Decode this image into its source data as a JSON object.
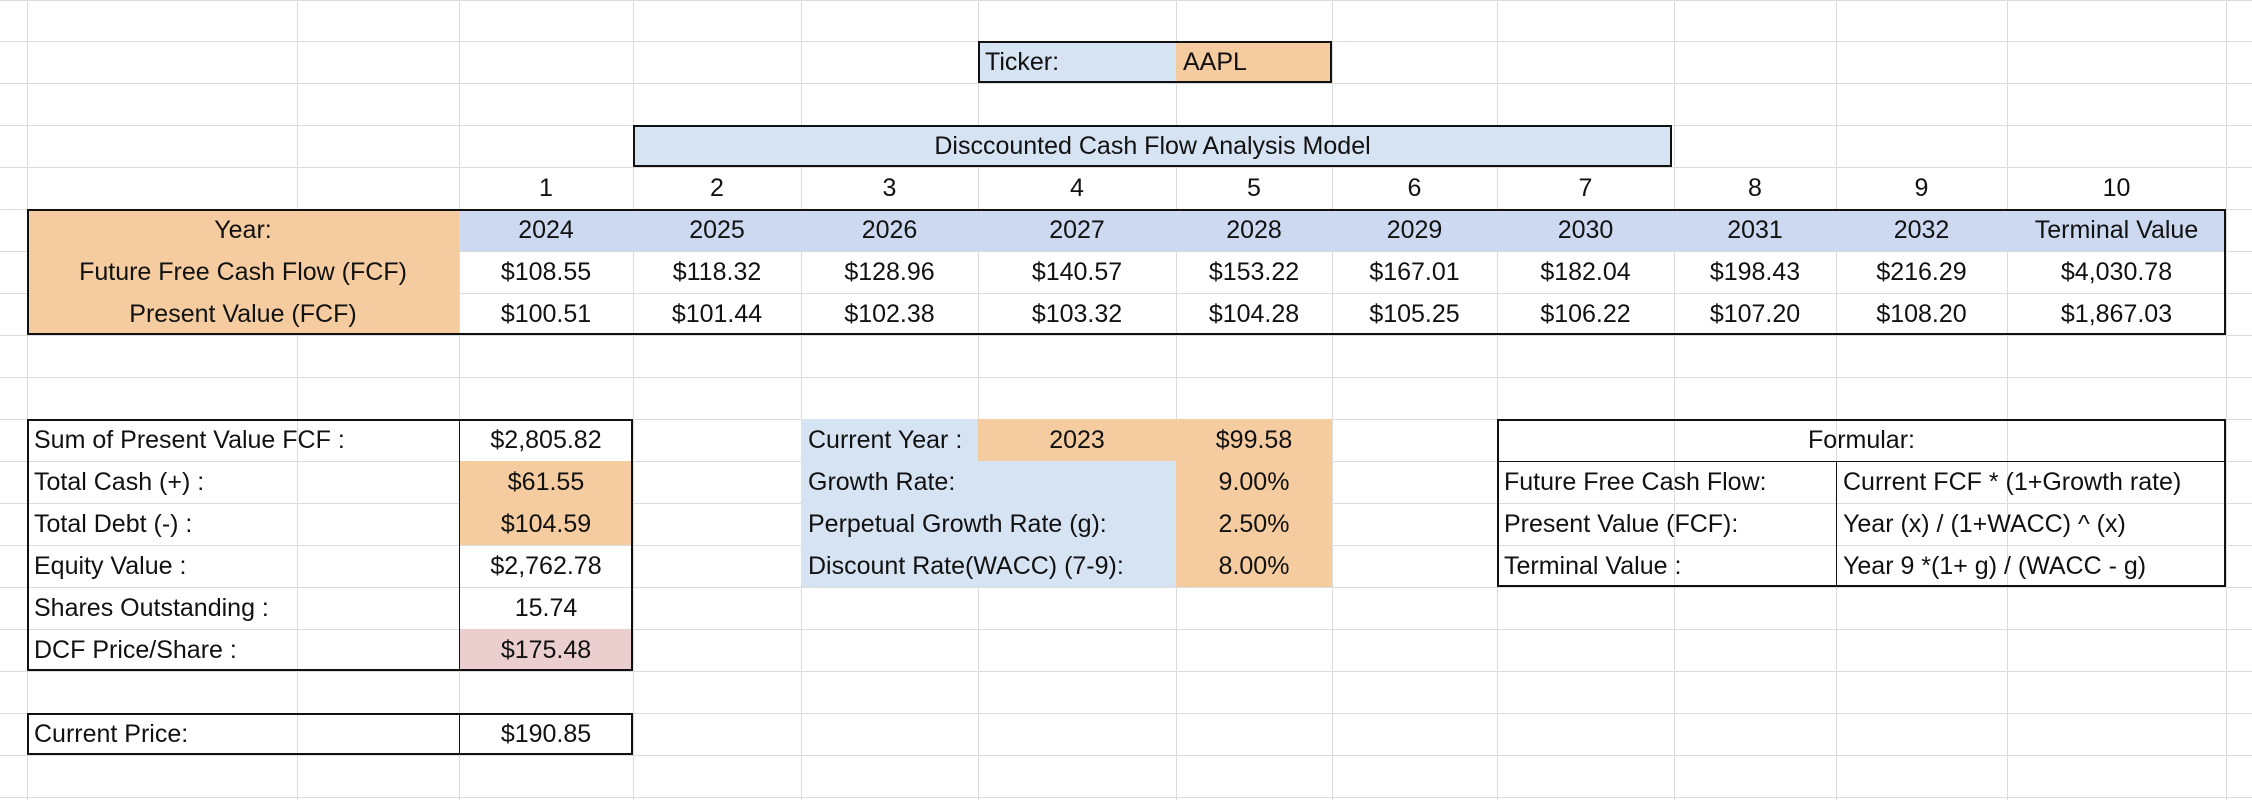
{
  "ticker": {
    "label": "Ticker:",
    "value": "AAPL"
  },
  "title": "Disccounted Cash Flow Analysis Model",
  "dcf_table": {
    "index_row": [
      "1",
      "2",
      "3",
      "4",
      "5",
      "6",
      "7",
      "8",
      "9",
      "10"
    ],
    "year_label": "Year:",
    "years": [
      "2024",
      "2025",
      "2026",
      "2027",
      "2028",
      "2029",
      "2030",
      "2031",
      "2032",
      "Terminal Value"
    ],
    "fcf_label": "Future Free Cash Flow (FCF)",
    "fcf_values": [
      "$108.55",
      "$118.32",
      "$128.96",
      "$140.57",
      "$153.22",
      "$167.01",
      "$182.04",
      "$198.43",
      "$216.29",
      "$4,030.78"
    ],
    "pv_label": "Present Value (FCF)",
    "pv_values": [
      "$100.51",
      "$101.44",
      "$102.38",
      "$103.32",
      "$104.28",
      "$105.25",
      "$106.22",
      "$107.20",
      "$108.20",
      "$1,867.03"
    ]
  },
  "valuation": {
    "rows": [
      {
        "label": "Sum of  Present Value FCF :",
        "value": "$2,805.82"
      },
      {
        "label": "Total Cash (+) :",
        "value": "$61.55"
      },
      {
        "label": "Total Debt (-) :",
        "value": "$104.59"
      },
      {
        "label": "Equity Value :",
        "value": "$2,762.78"
      },
      {
        "label": "Shares Outstanding :",
        "value": "15.74"
      },
      {
        "label": "DCF Price/Share :",
        "value": "$175.48"
      }
    ],
    "current_price_label": "Current Price:",
    "current_price_value": "$190.85"
  },
  "assumptions": {
    "current_year_label": "Current Year :",
    "current_year": "2023",
    "current_fcf": "$99.58",
    "growth_rate_label": "Growth Rate:",
    "growth_rate": "9.00%",
    "perpetual_label": "Perpetual Growth Rate (g):",
    "perpetual": "2.50%",
    "discount_label": "Discount Rate(WACC) (7-9):",
    "discount": "8.00%"
  },
  "formulas": {
    "header": "Formular:",
    "rows": [
      {
        "label": "Future Free Cash Flow:",
        "formula": "Current FCF * (1+Growth rate)"
      },
      {
        "label": "Present Value (FCF):",
        "formula": "Year (x)  /  (1+WACC) ^ (x)"
      },
      {
        "label": "Terminal Value :",
        "formula": "Year 9 *(1+ g) / (WACC - g)"
      }
    ]
  },
  "colors": {
    "input_orange": "#f4cca0",
    "header_blue": "#ccd9f1",
    "label_blue": "#d6e3f2",
    "result_pink": "#ebcfcf",
    "gridline": "#dcdcdc"
  }
}
